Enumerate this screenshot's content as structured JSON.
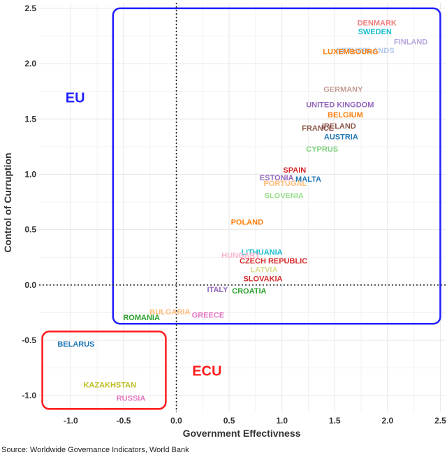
{
  "chart_data": {
    "type": "scatter",
    "title": "",
    "xlabel": "Government Effectivness",
    "ylabel": "Control of Curruption",
    "xlim": [
      -1.3,
      2.55
    ],
    "ylim": [
      -1.15,
      2.55
    ],
    "xticks": [
      -1.0,
      -0.5,
      0.0,
      0.5,
      1.0,
      1.5,
      2.0,
      2.5
    ],
    "yticks": [
      -1.0,
      -0.5,
      0.0,
      0.5,
      1.0,
      1.5,
      2.0,
      2.5
    ],
    "xtick_labels": [
      "-1.0",
      "-0.5",
      "0.0",
      "0.5",
      "1.0",
      "1.5",
      "2.0",
      "2.5"
    ],
    "ytick_labels": [
      "-1.0",
      "-0.5",
      "0.0",
      "0.5",
      "1.0",
      "1.5",
      "2.0",
      "2.5"
    ],
    "grid": true,
    "reference_lines": {
      "x": 0,
      "y": 0
    },
    "points": [
      {
        "label": "DENMARK",
        "x": 1.9,
        "y": 2.37,
        "color": "#f08080"
      },
      {
        "label": "SWEDEN",
        "x": 1.88,
        "y": 2.29,
        "color": "#17becf"
      },
      {
        "label": "FINLAND",
        "x": 2.22,
        "y": 2.2,
        "color": "#b7a6e0"
      },
      {
        "label": "NETHERLANDS",
        "x": 1.79,
        "y": 2.12,
        "color": "#aec7e8"
      },
      {
        "label": "LUXEMBOURG",
        "x": 1.65,
        "y": 2.11,
        "color": "#ff7f0e"
      },
      {
        "label": "GERMANY",
        "x": 1.58,
        "y": 1.77,
        "color": "#c49c94"
      },
      {
        "label": "UNITED KINGDOM",
        "x": 1.55,
        "y": 1.63,
        "color": "#9467bd"
      },
      {
        "label": "BELGIUM",
        "x": 1.6,
        "y": 1.54,
        "color": "#ff7f0e"
      },
      {
        "label": "IRELAND",
        "x": 1.54,
        "y": 1.44,
        "color": "#8c564b"
      },
      {
        "label": "FRANCE",
        "x": 1.34,
        "y": 1.42,
        "color": "#8c564b"
      },
      {
        "label": "AUSTRIA",
        "x": 1.56,
        "y": 1.34,
        "color": "#1f77b4"
      },
      {
        "label": "CYPRUS",
        "x": 1.38,
        "y": 1.23,
        "color": "#7fd07f"
      },
      {
        "label": "SPAIN",
        "x": 1.12,
        "y": 1.04,
        "color": "#d62728"
      },
      {
        "label": "ESTONIA",
        "x": 0.95,
        "y": 0.97,
        "color": "#9467bd"
      },
      {
        "label": "MALTA",
        "x": 1.25,
        "y": 0.96,
        "color": "#1f77b4"
      },
      {
        "label": "PORTUGAL",
        "x": 1.03,
        "y": 0.92,
        "color": "#ffbb78"
      },
      {
        "label": "SLOVENIA",
        "x": 1.02,
        "y": 0.81,
        "color": "#98df8a"
      },
      {
        "label": "POLAND",
        "x": 0.67,
        "y": 0.57,
        "color": "#ff7f0e"
      },
      {
        "label": "LITHUANIA",
        "x": 0.81,
        "y": 0.3,
        "color": "#17becf"
      },
      {
        "label": "HUNGARY",
        "x": 0.61,
        "y": 0.27,
        "color": "#f7b6d2"
      },
      {
        "label": "CZECH REPUBLIC",
        "x": 0.92,
        "y": 0.22,
        "color": "#d62728"
      },
      {
        "label": "LATVIA",
        "x": 0.83,
        "y": 0.14,
        "color": "#dbdb8d"
      },
      {
        "label": "SLOVAKIA",
        "x": 0.82,
        "y": 0.06,
        "color": "#d62728"
      },
      {
        "label": "ITALY",
        "x": 0.39,
        "y": -0.04,
        "color": "#9467bd"
      },
      {
        "label": "CROATIA",
        "x": 0.69,
        "y": -0.05,
        "color": "#2ca02c"
      },
      {
        "label": "ROMANIA",
        "x": -0.33,
        "y": -0.29,
        "color": "#2ca02c"
      },
      {
        "label": "BULGARIA",
        "x": -0.06,
        "y": -0.24,
        "color": "#ffbb78"
      },
      {
        "label": "GREECE",
        "x": 0.3,
        "y": -0.27,
        "color": "#e377c2"
      },
      {
        "label": "BELARUS",
        "x": -0.95,
        "y": -0.53,
        "color": "#1f77b4"
      },
      {
        "label": "KAZAKHSTAN",
        "x": -0.63,
        "y": -0.9,
        "color": "#bcbd22"
      },
      {
        "label": "RUSSIA",
        "x": -0.43,
        "y": -1.02,
        "color": "#e377c2"
      }
    ],
    "groups": [
      {
        "name": "EU",
        "x_range": [
          -0.6,
          2.5
        ],
        "y_range": [
          -0.35,
          2.5
        ],
        "color": "#1f1fff",
        "label_x": -1.05,
        "label_y": 1.65
      },
      {
        "name": "ECU",
        "x_range": [
          -1.27,
          -0.1
        ],
        "y_range": [
          -1.12,
          -0.42
        ],
        "color": "#ff1a1a",
        "label_x": 0.15,
        "label_y": -0.82
      }
    ]
  },
  "source": "Source: Worldwide Governance Indicators, World Bank"
}
